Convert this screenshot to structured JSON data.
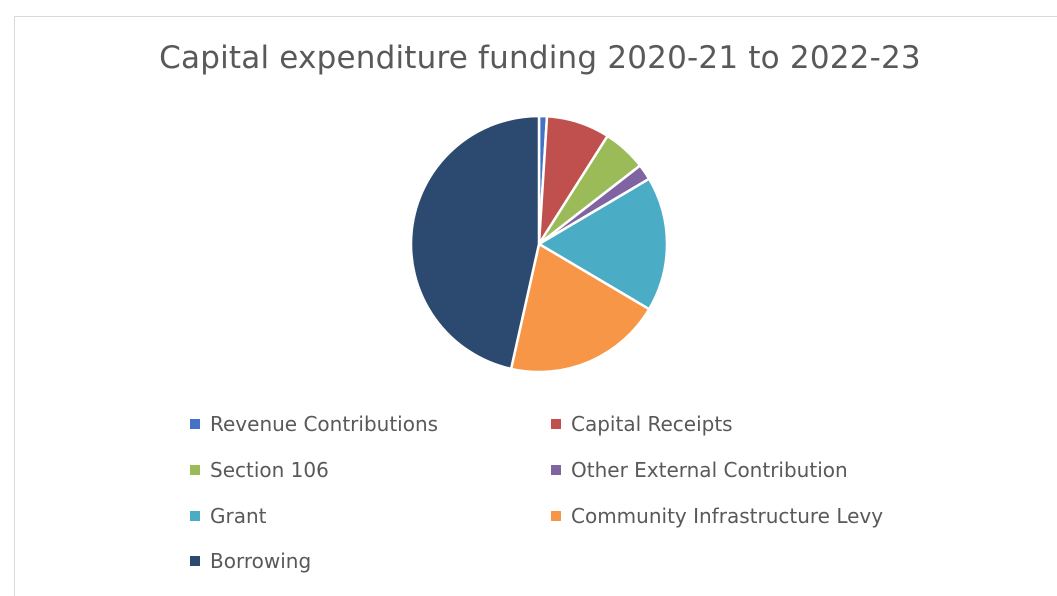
{
  "chart_data": {
    "type": "pie",
    "title": "Capital expenditure funding 2020-21 to 2022-23",
    "legend_position": "bottom",
    "slices": [
      {
        "label": "Revenue Contributions",
        "value": 1.0,
        "color": "#4472C4"
      },
      {
        "label": "Capital Receipts",
        "value": 8.0,
        "color": "#C0504D"
      },
      {
        "label": "Section 106",
        "value": 5.5,
        "color": "#9BBB59"
      },
      {
        "label": "Other External Contribution",
        "value": 2.0,
        "color": "#8064A2"
      },
      {
        "label": "Grant",
        "value": 17.0,
        "color": "#4BACC6"
      },
      {
        "label": "Community Infrastructure Levy",
        "value": 20.0,
        "color": "#F79646"
      },
      {
        "label": "Borrowing",
        "value": 46.5,
        "color": "#2C4A70"
      }
    ]
  }
}
